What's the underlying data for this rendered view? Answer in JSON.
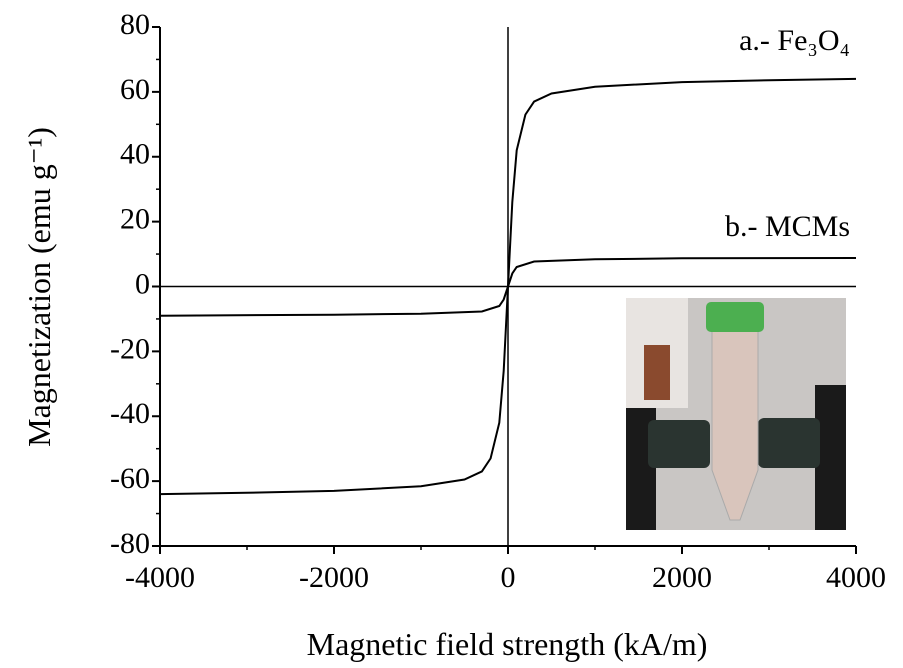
{
  "chart_data": {
    "type": "line",
    "xlabel": "Magnetic field strength (kA/m)",
    "ylabel": "Magnetization (emu g⁻¹)",
    "xlim": [
      -4000,
      4000
    ],
    "ylim": [
      -80,
      80
    ],
    "xticks": [
      -4000,
      -2000,
      0,
      2000,
      4000
    ],
    "yticks": [
      -80,
      -60,
      -40,
      -20,
      0,
      20,
      40,
      60,
      80
    ],
    "xminorticks": [
      -3000,
      -1000,
      1000,
      3000
    ],
    "yminorticks": [
      -70,
      -50,
      -30,
      -10,
      10,
      30,
      50,
      70
    ],
    "series": [
      {
        "name": "a.- Fe₃O₄",
        "color": "#000000",
        "x": [
          -4000,
          -3000,
          -2000,
          -1000,
          -500,
          -300,
          -200,
          -100,
          -50,
          0,
          50,
          100,
          200,
          300,
          500,
          1000,
          2000,
          3000,
          4000
        ],
        "values": [
          -64,
          -63.6,
          -63,
          -61.6,
          -59.5,
          -57,
          -53,
          -42,
          -26,
          0,
          26,
          42,
          53,
          57,
          59.5,
          61.6,
          63,
          63.6,
          64
        ]
      },
      {
        "name": "b.- MCMs",
        "color": "#000000",
        "x": [
          -4000,
          -2000,
          -1000,
          -300,
          -100,
          -50,
          0,
          50,
          100,
          300,
          1000,
          2000,
          4000
        ],
        "values": [
          -9,
          -8.7,
          -8.4,
          -7.7,
          -6,
          -4,
          0,
          4,
          6,
          7.7,
          8.4,
          8.7,
          8.8
        ]
      }
    ]
  }
}
